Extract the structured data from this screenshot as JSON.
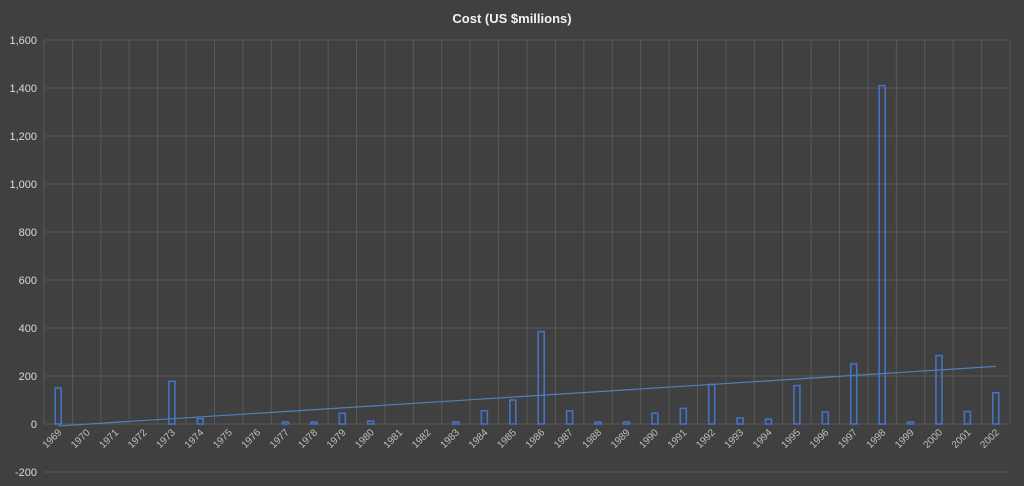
{
  "chart_data": {
    "type": "bar",
    "title": "Cost (US $millions)",
    "xlabel": "",
    "ylabel": "",
    "categories": [
      "1969",
      "1970",
      "1971",
      "1972",
      "1973",
      "1974",
      "1975",
      "1976",
      "1977",
      "1978",
      "1979",
      "1980",
      "1981",
      "1982",
      "1983",
      "1984",
      "1985",
      "1986",
      "1987",
      "1988",
      "1989",
      "1990",
      "1991",
      "1992",
      "1993",
      "1994",
      "1995",
      "1996",
      "1997",
      "1998",
      "1999",
      "2000",
      "2001",
      "2002"
    ],
    "values": [
      150,
      0,
      0,
      0,
      178,
      22,
      0,
      0,
      5,
      5,
      45,
      12,
      0,
      0,
      5,
      55,
      100,
      385,
      55,
      5,
      5,
      45,
      65,
      165,
      25,
      20,
      160,
      50,
      250,
      1410,
      8,
      285,
      52,
      130
    ],
    "ylim": [
      -200,
      1600
    ],
    "yticks": [
      -200,
      0,
      200,
      400,
      600,
      800,
      1000,
      1200,
      1400,
      1600
    ],
    "ytick_labels": [
      "-200",
      "0",
      "200",
      "400",
      "600",
      "800",
      "1,000",
      "1,200",
      "1,400",
      "1,600"
    ],
    "grid": true,
    "legend": "none",
    "trendline": {
      "type": "linear",
      "start": -8,
      "end": 240
    },
    "colors": {
      "background": "#404040",
      "bar_stroke": "#4472c4",
      "trendline": "#4f81bd",
      "grid": "#595959",
      "text": "#d9d9d9"
    }
  }
}
